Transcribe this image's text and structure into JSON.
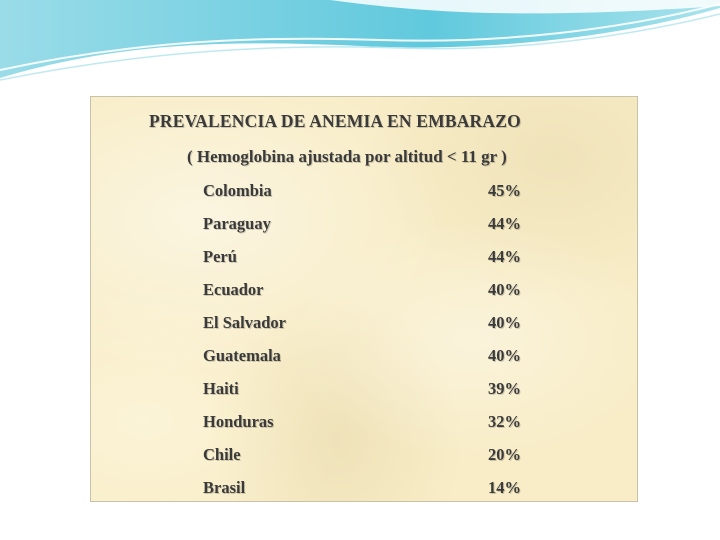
{
  "slide": {
    "title": "PREVALENCIA DE ANEMIA EN EMBARAZO",
    "subtitle": "( Hemoglobina ajustada por altitud < 11 gr )",
    "rows": [
      {
        "country": "Colombia",
        "value": "45%"
      },
      {
        "country": "Paraguay",
        "value": "44%"
      },
      {
        "country": "Perú",
        "value": "44%"
      },
      {
        "country": "Ecuador",
        "value": "40%"
      },
      {
        "country": "El Salvador",
        "value": "40%"
      },
      {
        "country": "Guatemala",
        "value": "40%"
      },
      {
        "country": "Haiti",
        "value": "39%"
      },
      {
        "country": "Honduras",
        "value": "32%"
      },
      {
        "country": "Chile",
        "value": "20%"
      },
      {
        "country": "Brasil",
        "value": "14%"
      }
    ]
  },
  "colors": {
    "panel_background": "#f8edc7",
    "text": "#3a3a3a",
    "swoosh_accent": "#4fc3d9"
  }
}
